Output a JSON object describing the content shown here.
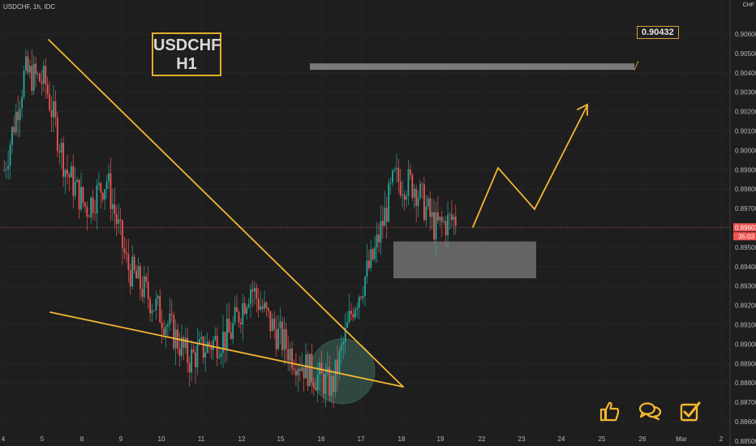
{
  "symbol": "USDCHF, 1h, IDC",
  "currency": "CHF",
  "title_line1": "USDCHF",
  "title_line2": "H1",
  "target_label": "0.90432",
  "current_price_label": "0.89603",
  "countdown_label": "35:03",
  "chart_data": {
    "type": "candlestick",
    "instrument": "USDCHF",
    "timeframe": "1h",
    "y_axis": {
      "ticks": [
        "0.90600",
        "0.90500",
        "0.90400",
        "0.90300",
        "0.90200",
        "0.90100",
        "0.90000",
        "0.89900",
        "0.89800",
        "0.89700",
        "0.89600",
        "0.89500",
        "0.89400",
        "0.89300",
        "0.89200",
        "0.89100",
        "0.89000",
        "0.88900",
        "0.88800",
        "0.88700",
        "0.88600",
        "0.88500"
      ],
      "ylim": [
        0.8846,
        0.9062
      ]
    },
    "x_axis": {
      "ticks": [
        "4",
        "5",
        "8",
        "9",
        "10",
        "11",
        "12",
        "15",
        "16",
        "17",
        "18",
        "19",
        "22",
        "23",
        "24",
        "25",
        "26",
        "Mar",
        "2"
      ]
    },
    "current_price": 0.89603,
    "target_price": 0.90432,
    "colors": {
      "up": "#26a69a",
      "down": "#ef5350",
      "pattern": "#f5b731",
      "zone": "#8a8a8a"
    },
    "path_anchors": [
      [
        0.899,
        0.899
      ],
      [
        0.904,
        0.9045
      ],
      [
        0.9035,
        0.9015
      ],
      [
        0.899,
        0.8975
      ],
      [
        0.897,
        0.896
      ],
      [
        0.8985,
        0.8975
      ],
      [
        0.894,
        0.892
      ],
      [
        0.8925,
        0.8905
      ],
      [
        0.891,
        0.8895
      ],
      [
        0.8892,
        0.89
      ],
      [
        0.89,
        0.8908
      ],
      [
        0.8905,
        0.8895
      ],
      [
        0.893,
        0.8925
      ],
      [
        0.891,
        0.8905
      ],
      [
        0.8895,
        0.8888
      ],
      [
        0.8885,
        0.8872
      ],
      [
        0.8878,
        0.8895
      ],
      [
        0.892,
        0.893
      ],
      [
        0.8945,
        0.8965
      ],
      [
        0.8985,
        0.8988
      ],
      [
        0.8982,
        0.8975
      ],
      [
        0.896,
        0.8955
      ],
      [
        0.8965,
        0.896
      ]
    ]
  }
}
